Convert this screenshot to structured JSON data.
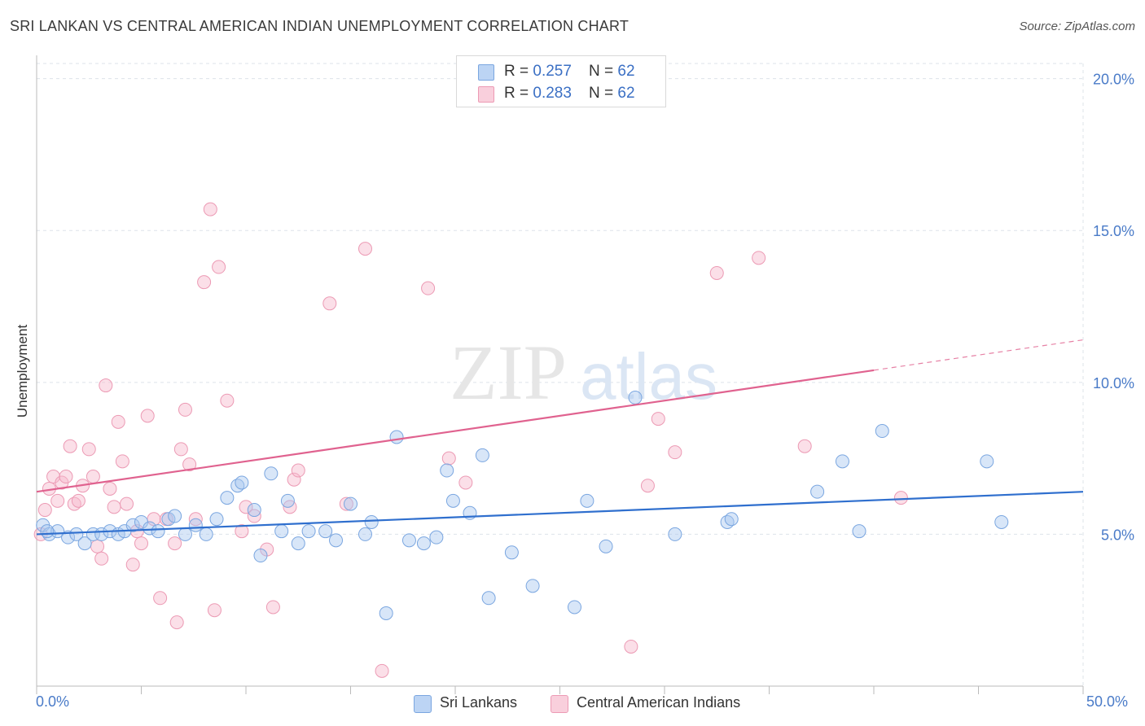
{
  "header": {
    "title": "SRI LANKAN VS CENTRAL AMERICAN INDIAN UNEMPLOYMENT CORRELATION CHART",
    "source": "Source: ZipAtlas.com"
  },
  "legend": {
    "rows": [
      {
        "r_label": "R = ",
        "r_value": "0.257",
        "n_label": "N = ",
        "n_value": "62"
      },
      {
        "r_label": "R = ",
        "r_value": "0.283",
        "n_label": "N = ",
        "n_value": "62"
      }
    ]
  },
  "bottom_legend": [
    "Sri Lankans",
    "Central American Indians"
  ],
  "watermark": {
    "zip": "ZIP",
    "atlas": "atlas"
  },
  "colors": {
    "blue_fill": "#a9c8f0",
    "blue_stroke": "#7aa6e0",
    "blue_line": "#2f6fce",
    "pink_fill": "#f6b8cb",
    "pink_stroke": "#ec9ab4",
    "pink_line": "#e0628f",
    "tick_label": "#4a7bc8",
    "grid": "#dde3ea"
  },
  "chart_data": {
    "type": "scatter",
    "title": "SRI LANKAN VS CENTRAL AMERICAN INDIAN UNEMPLOYMENT CORRELATION CHART",
    "xlabel": "",
    "ylabel": "Unemployment",
    "xlim": [
      0,
      50
    ],
    "ylim": [
      0,
      20.5
    ],
    "x_tick_labels": [
      "0.0%",
      "50.0%"
    ],
    "y_ticks": [
      5,
      10,
      15,
      20
    ],
    "y_tick_labels": [
      "5.0%",
      "10.0%",
      "15.0%",
      "20.0%"
    ],
    "grid": true,
    "legend_position": "top-center",
    "series": [
      {
        "name": "Sri Lankans",
        "r": 0.257,
        "n": 62,
        "trend": {
          "x": [
            0,
            50
          ],
          "y": [
            5.0,
            6.4
          ]
        },
        "points": [
          [
            0.3,
            5.3
          ],
          [
            0.6,
            5.0
          ],
          [
            1.0,
            5.1
          ],
          [
            1.5,
            4.9
          ],
          [
            1.9,
            5.0
          ],
          [
            2.3,
            4.7
          ],
          [
            2.7,
            5.0
          ],
          [
            3.1,
            5.0
          ],
          [
            3.5,
            5.1
          ],
          [
            3.9,
            5.0
          ],
          [
            4.2,
            5.1
          ],
          [
            4.6,
            5.3
          ],
          [
            5.0,
            5.4
          ],
          [
            5.4,
            5.2
          ],
          [
            5.8,
            5.1
          ],
          [
            6.3,
            5.5
          ],
          [
            6.6,
            5.6
          ],
          [
            7.1,
            5.0
          ],
          [
            7.6,
            5.3
          ],
          [
            8.1,
            5.0
          ],
          [
            8.6,
            5.5
          ],
          [
            9.1,
            6.2
          ],
          [
            9.6,
            6.6
          ],
          [
            9.8,
            6.7
          ],
          [
            10.4,
            5.8
          ],
          [
            10.7,
            4.3
          ],
          [
            11.2,
            7.0
          ],
          [
            11.7,
            5.1
          ],
          [
            12.0,
            6.1
          ],
          [
            12.5,
            4.7
          ],
          [
            13.0,
            5.1
          ],
          [
            13.8,
            5.1
          ],
          [
            14.3,
            4.8
          ],
          [
            15.0,
            6.0
          ],
          [
            15.7,
            5.0
          ],
          [
            16.0,
            5.4
          ],
          [
            16.7,
            2.4
          ],
          [
            17.2,
            8.2
          ],
          [
            17.8,
            4.8
          ],
          [
            18.5,
            4.7
          ],
          [
            19.1,
            4.9
          ],
          [
            19.6,
            7.1
          ],
          [
            19.9,
            6.1
          ],
          [
            20.7,
            5.7
          ],
          [
            21.3,
            7.6
          ],
          [
            21.6,
            2.9
          ],
          [
            22.7,
            4.4
          ],
          [
            23.7,
            3.3
          ],
          [
            25.7,
            2.6
          ],
          [
            26.3,
            6.1
          ],
          [
            27.2,
            4.6
          ],
          [
            28.6,
            9.5
          ],
          [
            30.5,
            5.0
          ],
          [
            33.0,
            5.4
          ],
          [
            33.2,
            5.5
          ],
          [
            37.3,
            6.4
          ],
          [
            38.5,
            7.4
          ],
          [
            39.3,
            5.1
          ],
          [
            40.4,
            8.4
          ],
          [
            45.4,
            7.4
          ],
          [
            46.1,
            5.4
          ],
          [
            0.5,
            5.1
          ]
        ]
      },
      {
        "name": "Central American Indians",
        "r": 0.283,
        "n": 62,
        "trend": {
          "x": [
            0,
            40
          ],
          "y": [
            6.4,
            10.4
          ]
        },
        "trend_dashed": {
          "x": [
            40,
            50
          ],
          "y": [
            10.4,
            11.4
          ]
        },
        "points": [
          [
            0.2,
            5.0
          ],
          [
            0.4,
            5.8
          ],
          [
            0.6,
            6.5
          ],
          [
            0.8,
            6.9
          ],
          [
            1.0,
            6.1
          ],
          [
            1.2,
            6.7
          ],
          [
            1.4,
            6.9
          ],
          [
            1.6,
            7.9
          ],
          [
            1.8,
            6.0
          ],
          [
            2.0,
            6.1
          ],
          [
            2.2,
            6.6
          ],
          [
            2.5,
            7.8
          ],
          [
            2.7,
            6.9
          ],
          [
            2.9,
            4.6
          ],
          [
            3.1,
            4.2
          ],
          [
            3.3,
            9.9
          ],
          [
            3.5,
            6.5
          ],
          [
            3.7,
            5.9
          ],
          [
            3.9,
            8.7
          ],
          [
            4.1,
            7.4
          ],
          [
            4.3,
            6.0
          ],
          [
            4.6,
            4.0
          ],
          [
            4.8,
            5.1
          ],
          [
            5.0,
            4.7
          ],
          [
            5.3,
            8.9
          ],
          [
            5.6,
            5.5
          ],
          [
            5.9,
            2.9
          ],
          [
            6.2,
            5.5
          ],
          [
            6.6,
            4.7
          ],
          [
            6.7,
            2.1
          ],
          [
            6.9,
            7.8
          ],
          [
            7.1,
            9.1
          ],
          [
            7.3,
            7.3
          ],
          [
            7.6,
            5.5
          ],
          [
            8.0,
            13.3
          ],
          [
            8.3,
            15.7
          ],
          [
            8.5,
            2.5
          ],
          [
            8.7,
            13.8
          ],
          [
            9.1,
            9.4
          ],
          [
            9.8,
            5.1
          ],
          [
            10.0,
            5.9
          ],
          [
            10.4,
            5.6
          ],
          [
            11.0,
            4.5
          ],
          [
            11.3,
            2.6
          ],
          [
            12.1,
            5.9
          ],
          [
            12.3,
            6.8
          ],
          [
            12.5,
            7.1
          ],
          [
            14.0,
            12.6
          ],
          [
            14.8,
            6.0
          ],
          [
            15.7,
            14.4
          ],
          [
            16.5,
            0.5
          ],
          [
            18.7,
            13.1
          ],
          [
            19.7,
            7.5
          ],
          [
            20.5,
            6.7
          ],
          [
            28.4,
            1.3
          ],
          [
            29.2,
            6.6
          ],
          [
            29.7,
            8.8
          ],
          [
            30.5,
            7.7
          ],
          [
            32.5,
            13.6
          ],
          [
            34.5,
            14.1
          ],
          [
            36.7,
            7.9
          ],
          [
            41.3,
            6.2
          ]
        ]
      }
    ]
  }
}
